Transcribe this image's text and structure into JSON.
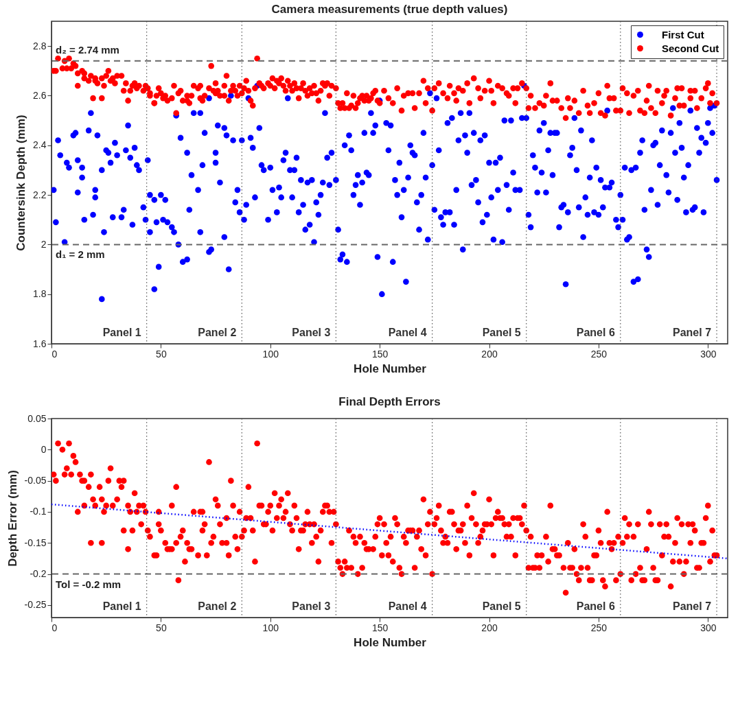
{
  "chart_data": [
    {
      "type": "scatter",
      "title": "Camera measurements (true depth values)",
      "xlabel": "Hole Number",
      "ylabel": "Countersink Depth (mm)",
      "xlim": [
        0,
        309
      ],
      "xticks": [
        0,
        50,
        100,
        150,
        200,
        250,
        300
      ],
      "ylim": [
        1.6,
        2.9
      ],
      "yticks": [
        1.6,
        1.8,
        2,
        2.2,
        2.4,
        2.6,
        2.8
      ],
      "marker": "circle",
      "legend": "top right",
      "series": [
        {
          "name": "First Cut",
          "color": "#0000ff",
          "x": [
            1,
            2,
            3,
            4,
            6,
            7,
            8,
            10,
            11,
            12,
            12,
            14,
            14,
            15,
            17,
            18,
            19,
            20,
            20,
            21,
            23,
            23,
            24,
            25,
            26,
            27,
            28,
            29,
            30,
            32,
            33,
            34,
            35,
            36,
            37,
            38,
            39,
            40,
            42,
            43,
            44,
            45,
            45,
            47,
            47,
            48,
            49,
            50,
            51,
            52,
            53,
            55,
            56,
            57,
            58,
            59,
            60,
            62,
            62,
            63,
            64,
            65,
            67,
            68,
            68,
            69,
            70,
            72,
            73,
            72,
            75,
            75,
            76,
            77,
            79,
            79,
            80,
            81,
            82,
            83,
            84,
            85,
            86,
            87,
            88,
            89,
            90,
            91,
            92,
            93,
            94,
            95,
            96,
            97,
            99,
            100,
            101,
            103,
            104,
            105,
            106,
            107,
            108,
            109,
            110,
            111,
            112,
            113,
            114,
            115,
            116,
            117,
            118,
            119,
            120,
            121,
            122,
            123,
            124,
            125,
            126,
            127,
            128,
            130,
            131,
            132,
            133,
            134,
            135,
            136,
            137,
            138,
            139,
            140,
            141,
            142,
            143,
            144,
            145,
            146,
            147,
            148,
            149,
            151,
            150,
            153,
            155,
            154,
            156,
            157,
            158,
            159,
            160,
            161,
            162,
            163,
            164,
            165,
            166,
            167,
            168,
            169,
            170,
            171,
            172,
            173,
            174,
            175,
            176,
            177,
            178,
            179,
            180,
            181,
            182,
            183,
            184,
            185,
            186,
            187,
            188,
            189,
            190,
            191,
            192,
            193,
            194,
            195,
            196,
            197,
            198,
            199,
            200,
            201,
            202,
            203,
            204,
            205,
            206,
            207,
            208,
            209,
            210,
            211,
            212,
            214,
            215,
            216,
            217,
            218,
            219,
            220,
            221,
            222,
            223,
            224,
            225,
            226,
            227,
            228,
            229,
            230,
            231,
            232,
            233,
            234,
            235,
            236,
            237,
            238,
            239,
            240,
            241,
            242,
            243,
            244,
            245,
            246,
            247,
            248,
            249,
            250,
            251,
            252,
            253,
            254,
            255,
            256,
            258,
            259,
            260,
            261,
            262,
            263,
            264,
            265,
            266,
            267,
            268,
            269,
            270,
            271,
            272,
            273,
            274,
            275,
            276,
            277,
            278,
            279,
            281,
            282,
            283,
            284,
            285,
            286,
            287,
            288,
            289,
            290,
            291,
            292,
            293,
            294,
            295,
            296,
            297,
            298,
            299,
            300,
            301,
            302,
            303,
            304
          ],
          "values": [
            2.22,
            2.09,
            2.42,
            2.36,
            2.01,
            2.33,
            2.31,
            2.44,
            2.45,
            2.34,
            2.21,
            2.27,
            2.31,
            2.1,
            2.46,
            2.53,
            2.12,
            2.22,
            2.19,
            2.44,
            2.3,
            1.78,
            2.05,
            2.38,
            2.37,
            2.33,
            2.11,
            2.41,
            2.36,
            2.11,
            2.14,
            2.38,
            2.48,
            2.35,
            2.08,
            2.39,
            2.32,
            2.3,
            2.15,
            2.1,
            2.34,
            2.2,
            2.05,
            2.18,
            1.82,
            2.09,
            1.91,
            2.2,
            2.1,
            2.18,
            2.09,
            2.07,
            2.05,
            2.52,
            2.0,
            2.43,
            1.93,
            1.94,
            2.37,
            2.14,
            2.28,
            2.53,
            2.22,
            2.53,
            2.05,
            2.32,
            2.45,
            1.97,
            1.98,
            2.59,
            2.37,
            2.33,
            2.48,
            2.25,
            2.47,
            2.03,
            2.44,
            1.9,
            2.6,
            2.42,
            2.17,
            2.22,
            2.13,
            2.42,
            2.1,
            2.16,
            2.59,
            2.43,
            2.39,
            2.19,
            2.64,
            2.47,
            2.32,
            2.3,
            2.1,
            2.31,
            2.22,
            2.13,
            2.23,
            2.19,
            2.34,
            2.37,
            2.59,
            2.3,
            2.19,
            2.3,
            2.35,
            2.13,
            2.26,
            2.16,
            2.06,
            2.25,
            2.08,
            2.26,
            2.01,
            2.17,
            2.12,
            2.2,
            2.25,
            2.53,
            2.35,
            2.24,
            2.37,
            2.26,
            2.06,
            1.94,
            1.96,
            2.4,
            1.93,
            2.44,
            2.38,
            2.2,
            2.24,
            2.28,
            2.16,
            2.25,
            2.45,
            2.29,
            2.28,
            2.53,
            2.45,
            2.48,
            1.95,
            1.8,
            2.58,
            2.49,
            2.48,
            2.38,
            1.93,
            2.26,
            2.2,
            2.33,
            2.11,
            2.22,
            1.85,
            2.27,
            2.4,
            2.37,
            2.36,
            2.17,
            2.06,
            2.2,
            2.45,
            2.27,
            2.02,
            2.61,
            2.32,
            2.14,
            2.59,
            2.38,
            2.11,
            2.08,
            2.13,
            2.49,
            2.13,
            2.51,
            2.08,
            2.22,
            2.42,
            2.53,
            1.98,
            2.44,
            2.37,
            2.53,
            2.24,
            2.45,
            2.26,
            2.17,
            2.42,
            2.09,
            2.44,
            2.12,
            2.33,
            2.19,
            2.02,
            2.33,
            2.22,
            2.35,
            2.01,
            2.5,
            2.24,
            2.14,
            2.5,
            2.29,
            2.22,
            2.22,
            2.51,
            2.64,
            2.51,
            2.12,
            2.07,
            2.36,
            2.31,
            2.21,
            2.46,
            2.29,
            2.49,
            2.21,
            2.38,
            2.45,
            2.28,
            2.45,
            2.45,
            2.07,
            2.15,
            2.16,
            1.84,
            2.13,
            2.36,
            2.39,
            2.51,
            2.3,
            2.15,
            2.46,
            2.03,
            2.19,
            2.12,
            2.27,
            2.42,
            2.13,
            2.31,
            2.12,
            2.26,
            2.15,
            2.23,
            2.54,
            2.23,
            2.25,
            2.1,
            2.07,
            2.2,
            2.1,
            2.31,
            2.02,
            2.03,
            2.3,
            1.85,
            2.31,
            1.86,
            2.37,
            2.42,
            2.14,
            1.98,
            1.95,
            2.22,
            2.4,
            2.41,
            2.16,
            2.32,
            2.46,
            2.28,
            2.21,
            2.45,
            2.55,
            2.37,
            2.18,
            2.49,
            2.39,
            2.27,
            2.13,
            2.32,
            2.54,
            2.14,
            2.15,
            2.47,
            2.37,
            2.43,
            2.13,
            2.41,
            2.49,
            2.55,
            2.45,
            2.56,
            2.26
          ]
        },
        {
          "name": "Second Cut",
          "color": "#ff0000",
          "x": [
            1,
            2,
            3,
            5,
            6,
            7,
            8,
            9,
            10,
            11,
            12,
            12,
            14,
            15,
            15,
            17,
            18,
            19,
            20,
            20,
            21,
            23,
            23,
            24,
            25,
            26,
            27,
            28,
            29,
            30,
            32,
            33,
            34,
            35,
            36,
            37,
            38,
            39,
            40,
            42,
            43,
            44,
            45,
            45,
            47,
            47,
            48,
            49,
            50,
            51,
            52,
            53,
            55,
            56,
            57,
            58,
            59,
            60,
            62,
            62,
            63,
            64,
            65,
            67,
            68,
            68,
            69,
            70,
            72,
            73,
            74,
            75,
            75,
            76,
            77,
            79,
            79,
            80,
            81,
            82,
            83,
            84,
            85,
            86,
            87,
            88,
            89,
            90,
            91,
            92,
            93,
            94,
            95,
            96,
            97,
            99,
            100,
            101,
            102,
            103,
            104,
            105,
            106,
            107,
            108,
            109,
            110,
            111,
            112,
            113,
            114,
            115,
            116,
            117,
            118,
            119,
            120,
            121,
            122,
            123,
            124,
            125,
            126,
            127,
            128,
            130,
            131,
            132,
            133,
            134,
            135,
            136,
            137,
            138,
            139,
            140,
            141,
            142,
            143,
            144,
            145,
            146,
            147,
            148,
            149,
            150,
            152,
            154,
            156,
            158,
            160,
            161,
            163,
            165,
            166,
            168,
            170,
            171,
            172,
            174,
            175,
            177,
            179,
            181,
            182,
            184,
            185,
            186,
            188,
            190,
            191,
            193,
            195,
            196,
            198,
            200,
            201,
            202,
            204,
            206,
            208,
            209,
            211,
            212,
            213,
            215,
            217,
            218,
            219,
            221,
            223,
            225,
            226,
            228,
            229,
            231,
            233,
            235,
            236,
            237,
            239,
            241,
            243,
            245,
            246,
            248,
            250,
            251,
            253,
            254,
            255,
            257,
            258,
            260,
            261,
            263,
            264,
            266,
            268,
            269,
            271,
            272,
            273,
            274,
            276,
            277,
            279,
            280,
            281,
            283,
            285,
            286,
            287,
            288,
            289,
            292,
            292,
            294,
            295,
            297,
            299,
            300,
            301,
            302,
            304
          ],
          "values": [
            2.7,
            2.7,
            2.75,
            2.71,
            2.74,
            2.71,
            2.75,
            2.71,
            2.73,
            2.72,
            2.69,
            2.64,
            2.7,
            2.69,
            2.67,
            2.66,
            2.68,
            2.59,
            2.66,
            2.67,
            2.65,
            2.67,
            2.59,
            2.64,
            2.68,
            2.7,
            2.66,
            2.67,
            2.65,
            2.68,
            2.68,
            2.62,
            2.65,
            2.58,
            2.62,
            2.64,
            2.65,
            2.63,
            2.64,
            2.62,
            2.64,
            2.63,
            2.61,
            2.6,
            2.57,
            2.57,
            2.6,
            2.63,
            2.61,
            2.59,
            2.6,
            2.58,
            2.59,
            2.64,
            2.53,
            2.61,
            2.62,
            2.58,
            2.6,
            2.58,
            2.57,
            2.6,
            2.64,
            2.63,
            2.64,
            2.59,
            2.58,
            2.6,
            2.63,
            2.72,
            2.62,
            2.61,
            2.65,
            2.62,
            2.6,
            2.64,
            2.6,
            2.68,
            2.58,
            2.62,
            2.64,
            2.62,
            2.6,
            2.64,
            2.61,
            2.63,
            2.66,
            2.62,
            2.58,
            2.56,
            2.63,
            2.75,
            2.65,
            2.64,
            2.63,
            2.65,
            2.64,
            2.67,
            2.63,
            2.66,
            2.65,
            2.67,
            2.64,
            2.62,
            2.66,
            2.64,
            2.62,
            2.65,
            2.63,
            2.59,
            2.63,
            2.65,
            2.62,
            2.6,
            2.63,
            2.61,
            2.64,
            2.61,
            2.58,
            2.62,
            2.65,
            2.64,
            2.65,
            2.6,
            2.64,
            2.63,
            2.57,
            2.55,
            2.57,
            2.55,
            2.61,
            2.55,
            2.56,
            2.6,
            2.55,
            2.57,
            2.59,
            2.6,
            2.58,
            2.6,
            2.58,
            2.59,
            2.61,
            2.62,
            2.58,
            2.57,
            2.62,
            2.59,
            2.57,
            2.63,
            2.54,
            2.6,
            2.61,
            2.61,
            2.55,
            2.61,
            2.66,
            2.57,
            2.63,
            2.54,
            2.63,
            2.65,
            2.61,
            2.59,
            2.64,
            2.61,
            2.58,
            2.63,
            2.62,
            2.65,
            2.57,
            2.67,
            2.63,
            2.59,
            2.62,
            2.66,
            2.62,
            2.57,
            2.64,
            2.63,
            2.61,
            2.6,
            2.63,
            2.57,
            2.63,
            2.65,
            2.63,
            2.55,
            2.6,
            2.55,
            2.57,
            2.56,
            2.6,
            2.65,
            2.58,
            2.58,
            2.55,
            2.51,
            2.59,
            2.55,
            2.58,
            2.53,
            2.62,
            2.56,
            2.53,
            2.57,
            2.61,
            2.53,
            2.52,
            2.64,
            2.59,
            2.59,
            2.54,
            2.54,
            2.63,
            2.61,
            2.53,
            2.6,
            2.62,
            2.54,
            2.53,
            2.58,
            2.64,
            2.55,
            2.53,
            2.62,
            2.57,
            2.6,
            2.62,
            2.52,
            2.59,
            2.63,
            2.56,
            2.63,
            2.56,
            2.62,
            2.59,
            2.62,
            2.55,
            2.59,
            2.63,
            2.65,
            2.57,
            2.61,
            2.57
          ]
        }
      ],
      "ref_lines": [
        {
          "axis": "y",
          "value": 2.74,
          "label": "d₂ = 2.74 mm",
          "color": "#666666",
          "line_style": "dashed"
        },
        {
          "axis": "y",
          "value": 2,
          "label": "d₁ = 2 mm",
          "color": "#666666",
          "line_style": "dashed"
        },
        {
          "axis": "x",
          "value": 43.5,
          "label": null,
          "color": "#555555",
          "line_style": "dotted"
        },
        {
          "axis": "x",
          "value": 87,
          "label": null,
          "color": "#555555",
          "line_style": "dotted"
        },
        {
          "axis": "x",
          "value": 130,
          "label": null,
          "color": "#555555",
          "line_style": "dotted"
        },
        {
          "axis": "x",
          "value": 174,
          "label": null,
          "color": "#555555",
          "line_style": "dotted"
        },
        {
          "axis": "x",
          "value": 217,
          "label": null,
          "color": "#555555",
          "line_style": "dotted"
        },
        {
          "axis": "x",
          "value": 260,
          "label": null,
          "color": "#555555",
          "line_style": "dotted"
        },
        {
          "axis": "x",
          "value": 304,
          "label": null,
          "color": "#555555",
          "line_style": "dotted"
        }
      ],
      "annotations": [
        "Panel 1",
        "Panel 2",
        "Panel 3",
        "Panel 4",
        "Panel 5",
        "Panel 6",
        "Panel 7"
      ]
    },
    {
      "type": "scatter",
      "title": "Final Depth Errors",
      "xlabel": "Hole Number",
      "ylabel": "Depth Error (mm)",
      "xlim": [
        0,
        309
      ],
      "xticks": [
        0,
        50,
        100,
        150,
        200,
        250,
        300
      ],
      "ylim": [
        -0.27,
        0.05
      ],
      "yticks": [
        -0.25,
        -0.2,
        -0.15,
        -0.1,
        -0.05,
        0,
        0.05
      ],
      "series": [
        {
          "color": "#ff0000",
          "marker": "circle",
          "x": [
            1,
            2,
            3,
            5,
            6,
            7,
            8,
            9,
            10,
            11,
            12,
            13,
            14,
            15,
            15,
            17,
            18,
            18,
            19,
            20,
            22,
            23,
            23,
            24,
            25,
            26,
            27,
            28,
            30,
            31,
            32,
            33,
            33,
            35,
            35,
            36,
            37,
            38,
            39,
            40,
            41,
            42,
            43,
            44,
            45,
            47,
            48,
            49,
            49,
            50,
            52,
            53,
            54,
            55,
            55,
            57,
            57,
            58,
            59,
            60,
            61,
            62,
            63,
            64,
            65,
            67,
            68,
            69,
            69,
            70,
            71,
            72,
            73,
            74,
            75,
            76,
            77,
            78,
            80,
            80,
            81,
            82,
            83,
            84,
            85,
            86,
            87,
            88,
            89,
            90,
            91,
            92,
            93,
            94,
            95,
            96,
            97,
            98,
            99,
            100,
            101,
            102,
            103,
            104,
            105,
            106,
            107,
            108,
            109,
            110,
            111,
            112,
            113,
            114,
            115,
            116,
            117,
            118,
            119,
            120,
            121,
            122,
            123,
            124,
            125,
            126,
            127,
            128,
            129,
            130,
            131,
            132,
            133,
            134,
            135,
            136,
            137,
            138,
            139,
            140,
            141,
            142,
            143,
            144,
            145,
            147,
            148,
            149,
            150,
            151,
            152,
            153,
            154,
            155,
            156,
            157,
            158,
            159,
            160,
            161,
            162,
            163,
            164,
            165,
            166,
            167,
            168,
            169,
            170,
            171,
            172,
            173,
            174,
            175,
            176,
            177,
            178,
            179,
            180,
            181,
            182,
            183,
            184,
            185,
            186,
            187,
            188,
            189,
            190,
            191,
            192,
            193,
            194,
            195,
            196,
            197,
            198,
            199,
            200,
            201,
            202,
            203,
            204,
            205,
            206,
            207,
            208,
            209,
            210,
            211,
            212,
            213,
            214,
            215,
            216,
            217,
            218,
            219,
            220,
            221,
            222,
            223,
            224,
            226,
            227,
            228,
            229,
            230,
            231,
            232,
            234,
            235,
            236,
            237,
            238,
            239,
            240,
            241,
            242,
            243,
            244,
            245,
            246,
            247,
            248,
            249,
            250,
            251,
            252,
            253,
            254,
            255,
            256,
            257,
            258,
            259,
            260,
            261,
            262,
            263,
            264,
            265,
            266,
            267,
            268,
            269,
            270,
            271,
            272,
            273,
            274,
            275,
            276,
            277,
            278,
            279,
            280,
            281,
            282,
            283,
            284,
            285,
            286,
            287,
            288,
            289,
            290,
            291,
            292,
            293,
            294,
            295,
            296,
            297,
            298,
            299,
            300,
            301,
            302,
            303,
            304
          ],
          "values": [
            -0.04,
            -0.05,
            0.01,
            0,
            -0.04,
            -0.03,
            0.01,
            -0.04,
            -0.01,
            -0.02,
            -0.1,
            -0.04,
            -0.05,
            -0.05,
            -0.09,
            -0.06,
            -0.04,
            -0.15,
            -0.08,
            -0.09,
            -0.06,
            -0.08,
            -0.15,
            -0.1,
            -0.09,
            -0.05,
            -0.03,
            -0.09,
            -0.08,
            -0.05,
            -0.06,
            -0.05,
            -0.13,
            -0.09,
            -0.16,
            -0.1,
            -0.13,
            -0.07,
            -0.1,
            -0.09,
            -0.12,
            -0.09,
            -0.1,
            -0.13,
            -0.14,
            -0.17,
            -0.17,
            -0.12,
            -0.1,
            -0.13,
            -0.15,
            -0.16,
            -0.16,
            -0.16,
            -0.09,
            -0.15,
            -0.06,
            -0.21,
            -0.14,
            -0.13,
            -0.18,
            -0.15,
            -0.16,
            -0.16,
            -0.1,
            -0.17,
            -0.1,
            -0.1,
            -0.13,
            -0.12,
            -0.17,
            -0.02,
            -0.15,
            -0.14,
            -0.08,
            -0.09,
            -0.12,
            -0.15,
            -0.15,
            -0.11,
            -0.17,
            -0.05,
            -0.09,
            -0.14,
            -0.16,
            -0.1,
            -0.14,
            -0.13,
            -0.11,
            -0.06,
            -0.11,
            -0.13,
            -0.18,
            0.01,
            -0.09,
            -0.09,
            -0.12,
            -0.12,
            -0.1,
            -0.09,
            -0.13,
            -0.07,
            -0.11,
            -0.09,
            -0.08,
            -0.11,
            -0.1,
            -0.07,
            -0.12,
            -0.13,
            -0.09,
            -0.11,
            -0.16,
            -0.13,
            -0.13,
            -0.12,
            -0.1,
            -0.12,
            -0.15,
            -0.12,
            -0.14,
            -0.18,
            -0.13,
            -0.1,
            -0.09,
            -0.09,
            -0.1,
            -0.15,
            -0.1,
            -0.12,
            -0.18,
            -0.19,
            -0.2,
            -0.18,
            -0.19,
            -0.13,
            -0.19,
            -0.14,
            -0.15,
            -0.2,
            -0.14,
            -0.19,
            -0.15,
            -0.16,
            -0.16,
            -0.16,
            -0.14,
            -0.12,
            -0.11,
            -0.17,
            -0.12,
            -0.15,
            -0.17,
            -0.14,
            -0.18,
            -0.11,
            -0.12,
            -0.19,
            -0.2,
            -0.14,
            -0.15,
            -0.13,
            -0.13,
            -0.13,
            -0.19,
            -0.14,
            -0.13,
            -0.16,
            -0.08,
            -0.17,
            -0.12,
            -0.1,
            -0.2,
            -0.12,
            -0.11,
            -0.09,
            -0.13,
            -0.15,
            -0.14,
            -0.15,
            -0.1,
            -0.1,
            -0.12,
            -0.16,
            -0.13,
            -0.13,
            -0.12,
            -0.15,
            -0.09,
            -0.17,
            -0.11,
            -0.07,
            -0.12,
            -0.15,
            -0.14,
            -0.13,
            -0.12,
            -0.12,
            -0.08,
            -0.12,
            -0.17,
            -0.11,
            -0.1,
            -0.11,
            -0.11,
            -0.12,
            -0.14,
            -0.12,
            -0.14,
            -0.11,
            -0.17,
            -0.11,
            -0.11,
            -0.12,
            -0.09,
            -0.13,
            -0.19,
            -0.14,
            -0.19,
            -0.19,
            -0.17,
            -0.19,
            -0.17,
            -0.14,
            -0.18,
            -0.09,
            -0.16,
            -0.16,
            -0.17,
            -0.17,
            -0.19,
            -0.23,
            -0.15,
            -0.19,
            -0.19,
            -0.16,
            -0.2,
            -0.21,
            -0.19,
            -0.12,
            -0.14,
            -0.19,
            -0.21,
            -0.21,
            -0.17,
            -0.17,
            -0.13,
            -0.15,
            -0.21,
            -0.22,
            -0.1,
            -0.15,
            -0.16,
            -0.15,
            -0.21,
            -0.14,
            -0.2,
            -0.15,
            -0.11,
            -0.14,
            -0.12,
            -0.21,
            -0.14,
            -0.2,
            -0.12,
            -0.19,
            -0.21,
            -0.21,
            -0.16,
            -0.1,
            -0.12,
            -0.19,
            -0.21,
            -0.21,
            -0.12,
            -0.17,
            -0.14,
            -0.12,
            -0.14,
            -0.22,
            -0.18,
            -0.15,
            -0.11,
            -0.18,
            -0.12,
            -0.2,
            -0.18,
            -0.12,
            -0.15,
            -0.12,
            -0.13,
            -0.19,
            -0.19,
            -0.15,
            -0.15,
            -0.11,
            -0.09,
            -0.18,
            -0.13,
            -0.17,
            -0.17
          ]
        },
        {
          "type": "line",
          "color": "#0000ff",
          "line_style": "dotted",
          "x": [
            0,
            309
          ],
          "values": [
            -0.088,
            -0.175
          ]
        }
      ],
      "ref_lines": [
        {
          "axis": "y",
          "value": -0.2,
          "label": "Tol = -0.2 mm",
          "color": "#666666",
          "line_style": "dashed"
        },
        {
          "axis": "x",
          "value": 43.5,
          "label": null,
          "color": "#555555",
          "line_style": "dotted"
        },
        {
          "axis": "x",
          "value": 87,
          "label": null,
          "color": "#555555",
          "line_style": "dotted"
        },
        {
          "axis": "x",
          "value": 130,
          "label": null,
          "color": "#555555",
          "line_style": "dotted"
        },
        {
          "axis": "x",
          "value": 174,
          "label": null,
          "color": "#555555",
          "line_style": "dotted"
        },
        {
          "axis": "x",
          "value": 217,
          "label": null,
          "color": "#555555",
          "line_style": "dotted"
        },
        {
          "axis": "x",
          "value": 260,
          "label": null,
          "color": "#555555",
          "line_style": "dotted"
        },
        {
          "axis": "x",
          "value": 304,
          "label": null,
          "color": "#555555",
          "line_style": "dotted"
        }
      ],
      "annotations": [
        "Panel 1",
        "Panel 2",
        "Panel 3",
        "Panel 4",
        "Panel 5",
        "Panel 6",
        "Panel 7"
      ]
    }
  ]
}
